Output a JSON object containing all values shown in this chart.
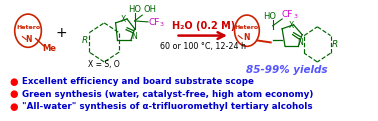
{
  "background_color": "#ffffff",
  "bullet_color": "#ff0000",
  "bullet_text_color": "#0000cc",
  "bullet_points": [
    "Excellent efficiency and board substrate scope",
    "Green synthesis (water, catalyst-free, high atom economy)",
    "\"All-water\" synthesis of α-trifluoromethyl tertiary alcohols"
  ],
  "arrow_color": "#cc0000",
  "arrow_label_top": "H₂O (0.2 M)",
  "arrow_label_bottom": "60 or 100 °C, 12-24 h",
  "yield_text": "85-99% yields",
  "yield_color": "#5555ff",
  "hetero_color": "#cc2200",
  "green_color": "#006600",
  "magenta_color": "#cc00cc",
  "black": "#000000"
}
